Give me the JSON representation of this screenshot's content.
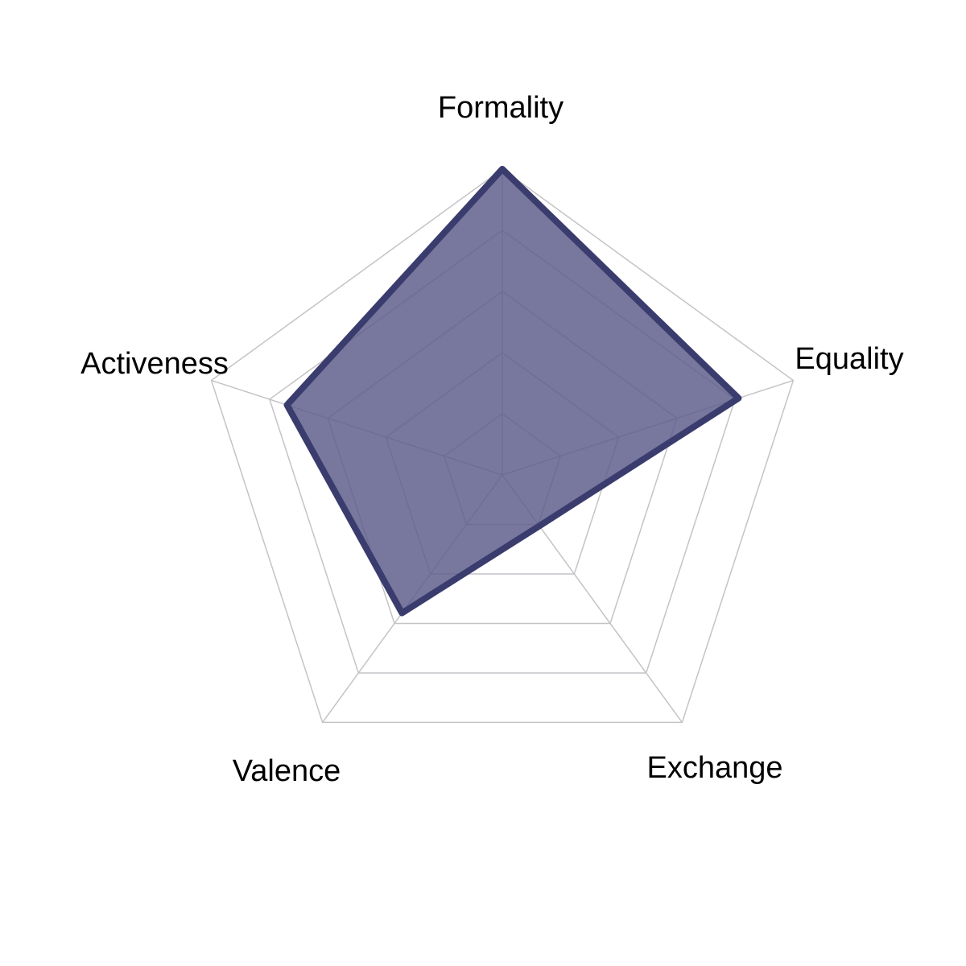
{
  "chart_data": {
    "type": "radar",
    "axes": [
      "Formality",
      "Equality",
      "Exchange",
      "Valence",
      "Activeness"
    ],
    "series": [
      {
        "values": [
          5.0,
          4.06,
          1.03,
          2.79,
          3.7
        ]
      }
    ],
    "range": [
      0,
      5
    ],
    "grid_levels": 5,
    "grid": true,
    "legend": "none",
    "colors": {
      "fill": "#5a5a8a",
      "fill_opacity": 0.82,
      "stroke": "#3a3c6e",
      "grid": "#c4c4c8",
      "label": "#000000"
    }
  }
}
